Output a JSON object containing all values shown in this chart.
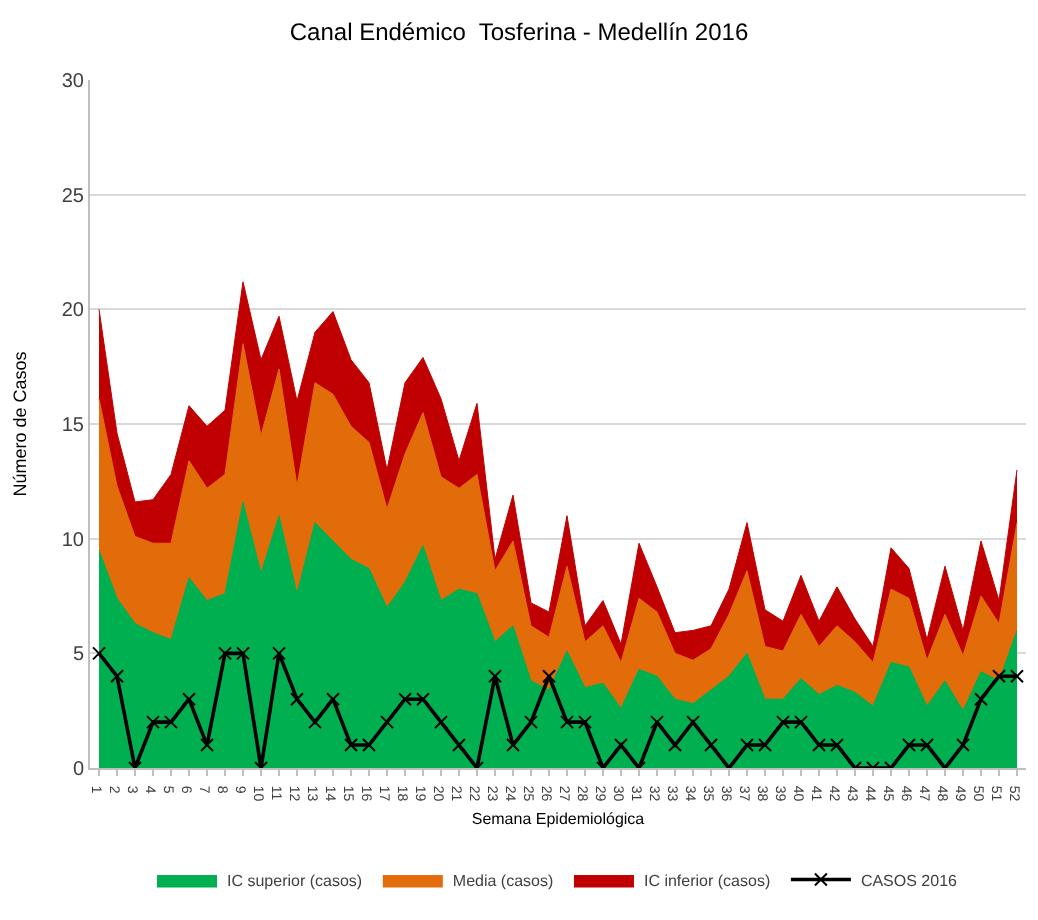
{
  "chart_data": {
    "type": "area",
    "title": "Canal Endémico  Tosferina - Medellín 2016",
    "xlabel": "Semana Epidemiológica",
    "ylabel": "Número de Casos",
    "categories": [
      "1",
      "2",
      "3",
      "4",
      "5",
      "6",
      "7",
      "8",
      "9",
      "10",
      "11",
      "12",
      "13",
      "14",
      "15",
      "16",
      "17",
      "18",
      "19",
      "20",
      "21",
      "22",
      "23",
      "24",
      "25",
      "26",
      "27",
      "28",
      "29",
      "30",
      "31",
      "32",
      "33",
      "34",
      "35",
      "36",
      "37",
      "38",
      "39",
      "40",
      "41",
      "42",
      "43",
      "44",
      "45",
      "46",
      "47",
      "48",
      "49",
      "50",
      "51",
      "52"
    ],
    "series": [
      {
        "name": "IC superior (casos)",
        "color": "#00b050",
        "values": [
          9.5,
          7.4,
          6.3,
          5.9,
          5.6,
          8.3,
          7.3,
          7.6,
          11.6,
          8.5,
          11.0,
          7.6,
          10.7,
          9.9,
          9.1,
          8.7,
          7.0,
          8.1,
          9.7,
          7.3,
          7.8,
          7.6,
          5.5,
          6.2,
          3.8,
          3.4,
          5.1,
          3.5,
          3.7,
          2.6,
          4.3,
          4.0,
          3.0,
          2.8,
          3.4,
          4.0,
          5.0,
          3.0,
          3.0,
          3.9,
          3.2,
          3.6,
          3.3,
          2.7,
          4.6,
          4.4,
          2.7,
          3.8,
          2.5,
          4.2,
          3.8,
          6.0
        ]
      },
      {
        "name": "Media (casos)",
        "color": "#e36c0a",
        "values": [
          16.1,
          12.3,
          10.1,
          9.8,
          9.8,
          13.4,
          12.2,
          12.8,
          18.5,
          14.5,
          17.4,
          12.3,
          16.8,
          16.3,
          14.9,
          14.2,
          11.3,
          13.7,
          15.5,
          12.7,
          12.2,
          12.8,
          8.6,
          9.9,
          6.2,
          5.7,
          8.8,
          5.5,
          6.2,
          4.6,
          7.4,
          6.8,
          5.0,
          4.7,
          5.2,
          6.7,
          8.6,
          5.3,
          5.1,
          6.7,
          5.3,
          6.2,
          5.5,
          4.6,
          7.8,
          7.4,
          4.7,
          6.7,
          4.9,
          7.5,
          6.3,
          10.7
        ]
      },
      {
        "name": "IC inferior (casos)",
        "color": "#c00000",
        "values": [
          20.0,
          14.6,
          11.6,
          11.7,
          12.8,
          15.8,
          14.9,
          15.6,
          21.2,
          17.8,
          19.7,
          16.0,
          19.0,
          19.9,
          17.8,
          16.8,
          13.0,
          16.8,
          17.9,
          16.1,
          13.4,
          15.9,
          9.1,
          11.9,
          7.2,
          6.8,
          11.0,
          6.2,
          7.3,
          5.4,
          9.8,
          7.9,
          5.9,
          6.0,
          6.2,
          7.8,
          10.7,
          6.9,
          6.4,
          8.4,
          6.4,
          7.9,
          6.5,
          5.3,
          9.6,
          8.7,
          5.6,
          8.8,
          6.0,
          9.9,
          7.3,
          13.0
        ]
      },
      {
        "name": "CASOS 2016",
        "type": "line",
        "color": "#000000",
        "marker": "cross",
        "values": [
          5,
          4,
          0,
          2,
          2,
          3,
          1,
          5,
          5,
          0,
          5,
          3,
          2,
          3,
          1,
          1,
          2,
          3,
          3,
          2,
          1,
          0,
          4,
          1,
          2,
          4,
          2,
          2,
          0,
          1,
          0,
          2,
          1,
          2,
          1,
          0,
          1,
          1,
          2,
          2,
          1,
          1,
          0,
          0,
          0,
          1,
          1,
          0,
          1,
          3,
          4,
          4
        ]
      }
    ],
    "ylim": [
      0,
      30
    ],
    "yticks": [
      0,
      5,
      10,
      15,
      20,
      25,
      30
    ],
    "grid": "y",
    "legend": "bottom"
  }
}
